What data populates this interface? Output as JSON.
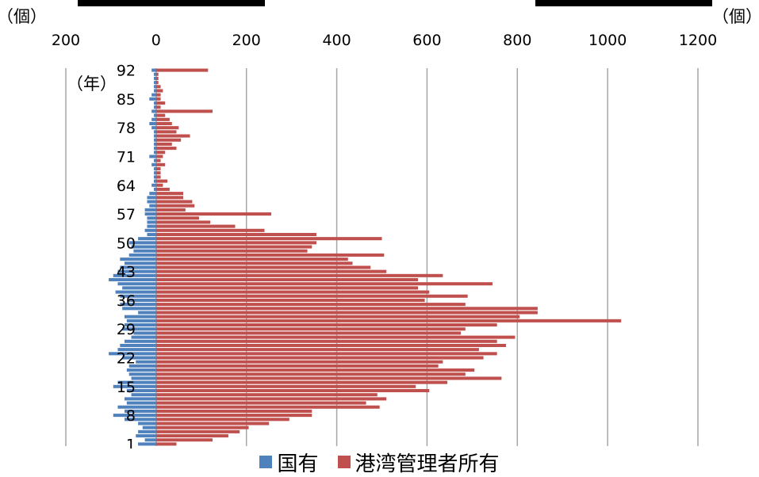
{
  "units": {
    "left": "（個）",
    "right": "（個）",
    "year": "（年）"
  },
  "colors": {
    "national": "#4F81BD",
    "port": "#C0504D",
    "grid": "#A6A6A6"
  },
  "legend": {
    "national": "国有",
    "port": "港湾管理者所有"
  },
  "chart_data": {
    "type": "bar",
    "orientation": "horizontal",
    "y": [
      1,
      2,
      3,
      4,
      5,
      6,
      7,
      8,
      9,
      10,
      11,
      12,
      13,
      14,
      15,
      16,
      17,
      18,
      19,
      20,
      21,
      22,
      23,
      24,
      25,
      26,
      27,
      28,
      29,
      30,
      31,
      32,
      33,
      34,
      35,
      36,
      37,
      38,
      39,
      40,
      41,
      42,
      43,
      44,
      45,
      46,
      47,
      48,
      49,
      50,
      51,
      52,
      53,
      54,
      55,
      56,
      57,
      58,
      59,
      60,
      61,
      62,
      63,
      64,
      65,
      66,
      67,
      68,
      69,
      70,
      71,
      72,
      73,
      74,
      75,
      76,
      77,
      78,
      79,
      80,
      81,
      82,
      83,
      84,
      85,
      86,
      87,
      88,
      89,
      90,
      91,
      92
    ],
    "y_tick_labels": [
      "1",
      "8",
      "15",
      "22",
      "29",
      "36",
      "43",
      "50",
      "57",
      "64",
      "71",
      "78",
      "85",
      "92"
    ],
    "x_tick_labels_top": [
      "200",
      "0",
      "200",
      "400",
      "600",
      "800",
      "1000",
      "1200"
    ],
    "xlim": [
      -200,
      1200
    ],
    "series": [
      {
        "name": "国有",
        "values": [
          -40,
          -25,
          -45,
          -40,
          -30,
          -40,
          -70,
          -95,
          -70,
          -85,
          -65,
          -70,
          -55,
          -65,
          -95,
          -85,
          -55,
          -60,
          -65,
          -60,
          -45,
          -75,
          -105,
          -85,
          -80,
          -70,
          -55,
          -50,
          -75,
          -70,
          -65,
          -70,
          -40,
          -75,
          -80,
          -60,
          -80,
          -90,
          -75,
          -85,
          -105,
          -95,
          -85,
          -80,
          -70,
          -80,
          -60,
          -50,
          -55,
          -60,
          -40,
          -20,
          -25,
          -20,
          -20,
          -20,
          -25,
          -25,
          -15,
          -20,
          -20,
          -15,
          -5,
          -10,
          -5,
          -5,
          -5,
          -5,
          -10,
          -5,
          -15,
          -5,
          -5,
          -5,
          -5,
          -5,
          -5,
          -10,
          -15,
          -10,
          -5,
          -10,
          -5,
          -5,
          -15,
          -10,
          -5,
          -5,
          -5,
          -5,
          -5,
          -10
        ]
      },
      {
        "name": "港湾管理者所有",
        "values": [
          45,
          125,
          160,
          185,
          205,
          250,
          295,
          345,
          345,
          495,
          465,
          510,
          490,
          605,
          575,
          645,
          765,
          685,
          705,
          625,
          635,
          725,
          755,
          715,
          775,
          755,
          795,
          675,
          685,
          755,
          1030,
          805,
          845,
          845,
          685,
          595,
          690,
          605,
          580,
          745,
          580,
          635,
          510,
          475,
          435,
          425,
          505,
          335,
          345,
          355,
          500,
          355,
          240,
          175,
          120,
          95,
          255,
          65,
          85,
          80,
          60,
          60,
          30,
          15,
          25,
          10,
          10,
          10,
          20,
          10,
          15,
          20,
          45,
          35,
          55,
          75,
          45,
          50,
          35,
          30,
          20,
          125,
          10,
          20,
          10,
          10,
          15,
          10,
          5,
          5,
          5,
          115
        ]
      }
    ]
  }
}
